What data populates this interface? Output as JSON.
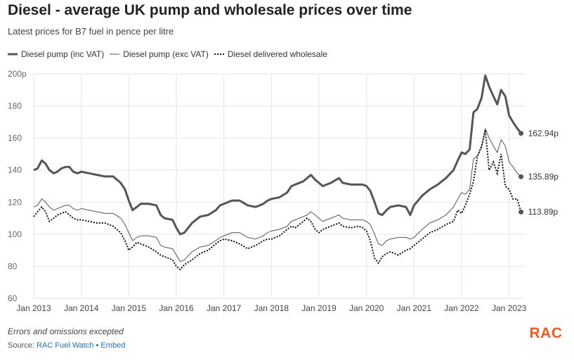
{
  "header": {
    "title": "Diesel - average UK pump and wholesale prices over time",
    "subtitle": "Latest prices for B7 fuel in pence per litre"
  },
  "footer": {
    "note": "Errors and omissions excepted",
    "source_prefix": "Source: ",
    "source_link": "RAC Fuel Watch",
    "separator": " • ",
    "embed_link": "Embed",
    "logo_text": "RAC"
  },
  "colors": {
    "pump_inc_vat": "#555555",
    "pump_exc_vat": "#555555",
    "wholesale": "#111111",
    "grid": "#e6e6e6",
    "logo": "#f15a22",
    "link": "#1a73c8"
  },
  "chart_data": {
    "type": "line",
    "title": "Diesel - average UK pump and wholesale prices over time",
    "subtitle": "Latest prices for B7 fuel in pence per litre",
    "ylim": [
      60,
      200
    ],
    "y_ticks": [
      "60",
      "80",
      "100",
      "120",
      "140",
      "160",
      "180",
      "200p"
    ],
    "xlim": [
      2013.0,
      2023.33
    ],
    "x_ticks": [
      {
        "x": 2013,
        "label": "Jan 2013"
      },
      {
        "x": 2014,
        "label": "Jan 2014"
      },
      {
        "x": 2015,
        "label": "Jan 2015"
      },
      {
        "x": 2016,
        "label": "Jan 2016"
      },
      {
        "x": 2017,
        "label": "Jan 2017"
      },
      {
        "x": 2018,
        "label": "Jan 2018"
      },
      {
        "x": 2019,
        "label": "Jan 2019"
      },
      {
        "x": 2020,
        "label": "Jan 2020"
      },
      {
        "x": 2021,
        "label": "Jan 2021"
      },
      {
        "x": 2022,
        "label": "Jan 2022"
      },
      {
        "x": 2023,
        "label": "Jan 2023"
      }
    ],
    "grid": true,
    "legend_position": "top-left",
    "series": [
      {
        "name": "Diesel pump (inc VAT)",
        "style": "thick",
        "end_label": "162.94p",
        "points": [
          [
            2013.0,
            140
          ],
          [
            2013.08,
            141
          ],
          [
            2013.17,
            146
          ],
          [
            2013.25,
            144
          ],
          [
            2013.33,
            140
          ],
          [
            2013.42,
            138
          ],
          [
            2013.5,
            139
          ],
          [
            2013.58,
            141
          ],
          [
            2013.67,
            142
          ],
          [
            2013.75,
            142
          ],
          [
            2013.83,
            139
          ],
          [
            2013.92,
            138
          ],
          [
            2014.0,
            139
          ],
          [
            2014.17,
            138
          ],
          [
            2014.33,
            137
          ],
          [
            2014.5,
            136
          ],
          [
            2014.67,
            136
          ],
          [
            2014.83,
            132
          ],
          [
            2014.92,
            128
          ],
          [
            2015.0,
            121
          ],
          [
            2015.08,
            115
          ],
          [
            2015.17,
            117
          ],
          [
            2015.25,
            119
          ],
          [
            2015.42,
            119
          ],
          [
            2015.58,
            118
          ],
          [
            2015.67,
            112
          ],
          [
            2015.75,
            110
          ],
          [
            2015.92,
            109
          ],
          [
            2016.0,
            104
          ],
          [
            2016.08,
            100
          ],
          [
            2016.17,
            101
          ],
          [
            2016.33,
            107
          ],
          [
            2016.5,
            111
          ],
          [
            2016.67,
            112
          ],
          [
            2016.83,
            115
          ],
          [
            2016.92,
            118
          ],
          [
            2017.0,
            119
          ],
          [
            2017.17,
            121
          ],
          [
            2017.33,
            121
          ],
          [
            2017.5,
            118
          ],
          [
            2017.67,
            117
          ],
          [
            2017.83,
            119
          ],
          [
            2017.92,
            121
          ],
          [
            2018.0,
            122
          ],
          [
            2018.17,
            123
          ],
          [
            2018.33,
            126
          ],
          [
            2018.42,
            130
          ],
          [
            2018.5,
            131
          ],
          [
            2018.67,
            133
          ],
          [
            2018.75,
            135
          ],
          [
            2018.83,
            137
          ],
          [
            2018.92,
            134
          ],
          [
            2019.0,
            132
          ],
          [
            2019.08,
            130
          ],
          [
            2019.25,
            132
          ],
          [
            2019.42,
            135
          ],
          [
            2019.5,
            132
          ],
          [
            2019.67,
            131
          ],
          [
            2019.83,
            131
          ],
          [
            2019.92,
            131
          ],
          [
            2020.0,
            130
          ],
          [
            2020.08,
            127
          ],
          [
            2020.17,
            120
          ],
          [
            2020.25,
            113
          ],
          [
            2020.33,
            112
          ],
          [
            2020.42,
            115
          ],
          [
            2020.5,
            117
          ],
          [
            2020.67,
            118
          ],
          [
            2020.83,
            117
          ],
          [
            2020.92,
            112
          ],
          [
            2021.0,
            118
          ],
          [
            2021.17,
            124
          ],
          [
            2021.33,
            128
          ],
          [
            2021.5,
            131
          ],
          [
            2021.67,
            135
          ],
          [
            2021.83,
            140
          ],
          [
            2021.92,
            146
          ],
          [
            2022.0,
            151
          ],
          [
            2022.08,
            150
          ],
          [
            2022.17,
            153
          ],
          [
            2022.25,
            176
          ],
          [
            2022.33,
            178
          ],
          [
            2022.42,
            185
          ],
          [
            2022.5,
            199
          ],
          [
            2022.58,
            192
          ],
          [
            2022.67,
            186
          ],
          [
            2022.75,
            181
          ],
          [
            2022.83,
            190
          ],
          [
            2022.92,
            186
          ],
          [
            2023.0,
            174
          ],
          [
            2023.08,
            170
          ],
          [
            2023.17,
            166
          ],
          [
            2023.25,
            162.94
          ]
        ]
      },
      {
        "name": "Diesel pump (exc VAT)",
        "style": "thin",
        "end_label": "135.89p",
        "points": [
          [
            2013.0,
            117
          ],
          [
            2013.08,
            118
          ],
          [
            2013.17,
            122
          ],
          [
            2013.25,
            120
          ],
          [
            2013.33,
            117
          ],
          [
            2013.42,
            115
          ],
          [
            2013.5,
            116
          ],
          [
            2013.58,
            117
          ],
          [
            2013.67,
            118
          ],
          [
            2013.75,
            118
          ],
          [
            2013.83,
            116
          ],
          [
            2013.92,
            115
          ],
          [
            2014.0,
            116
          ],
          [
            2014.17,
            115
          ],
          [
            2014.33,
            114
          ],
          [
            2014.5,
            113
          ],
          [
            2014.67,
            113
          ],
          [
            2014.83,
            110
          ],
          [
            2014.92,
            106
          ],
          [
            2015.0,
            101
          ],
          [
            2015.08,
            96
          ],
          [
            2015.17,
            98
          ],
          [
            2015.25,
            99
          ],
          [
            2015.42,
            99
          ],
          [
            2015.58,
            98
          ],
          [
            2015.67,
            93
          ],
          [
            2015.75,
            92
          ],
          [
            2015.92,
            91
          ],
          [
            2016.0,
            87
          ],
          [
            2016.08,
            83
          ],
          [
            2016.17,
            84
          ],
          [
            2016.33,
            89
          ],
          [
            2016.5,
            92
          ],
          [
            2016.67,
            93
          ],
          [
            2016.83,
            96
          ],
          [
            2016.92,
            98
          ],
          [
            2017.0,
            99
          ],
          [
            2017.17,
            101
          ],
          [
            2017.33,
            101
          ],
          [
            2017.5,
            98
          ],
          [
            2017.67,
            97
          ],
          [
            2017.83,
            99
          ],
          [
            2017.92,
            101
          ],
          [
            2018.0,
            102
          ],
          [
            2018.17,
            103
          ],
          [
            2018.33,
            105
          ],
          [
            2018.42,
            108
          ],
          [
            2018.5,
            109
          ],
          [
            2018.67,
            111
          ],
          [
            2018.75,
            112
          ],
          [
            2018.83,
            114
          ],
          [
            2018.92,
            112
          ],
          [
            2019.0,
            110
          ],
          [
            2019.08,
            108
          ],
          [
            2019.25,
            110
          ],
          [
            2019.42,
            112
          ],
          [
            2019.5,
            110
          ],
          [
            2019.67,
            109
          ],
          [
            2019.83,
            109
          ],
          [
            2019.92,
            109
          ],
          [
            2020.0,
            108
          ],
          [
            2020.08,
            106
          ],
          [
            2020.17,
            100
          ],
          [
            2020.25,
            94
          ],
          [
            2020.33,
            93
          ],
          [
            2020.42,
            96
          ],
          [
            2020.5,
            97
          ],
          [
            2020.67,
            98
          ],
          [
            2020.83,
            98
          ],
          [
            2020.92,
            97
          ],
          [
            2021.0,
            98
          ],
          [
            2021.17,
            103
          ],
          [
            2021.33,
            107
          ],
          [
            2021.5,
            109
          ],
          [
            2021.67,
            112
          ],
          [
            2021.83,
            117
          ],
          [
            2021.92,
            122
          ],
          [
            2022.0,
            126
          ],
          [
            2022.08,
            125
          ],
          [
            2022.17,
            128
          ],
          [
            2022.25,
            147
          ],
          [
            2022.33,
            149
          ],
          [
            2022.42,
            154
          ],
          [
            2022.5,
            166
          ],
          [
            2022.58,
            160
          ],
          [
            2022.67,
            155
          ],
          [
            2022.75,
            151
          ],
          [
            2022.83,
            159
          ],
          [
            2022.92,
            155
          ],
          [
            2023.0,
            145
          ],
          [
            2023.08,
            142
          ],
          [
            2023.17,
            138
          ],
          [
            2023.25,
            135.89
          ]
        ]
      },
      {
        "name": "Diesel delivered wholesale",
        "style": "dotted",
        "end_label": "113.89p",
        "points": [
          [
            2013.0,
            111
          ],
          [
            2013.08,
            114
          ],
          [
            2013.17,
            117
          ],
          [
            2013.25,
            114
          ],
          [
            2013.33,
            108
          ],
          [
            2013.42,
            110
          ],
          [
            2013.5,
            112
          ],
          [
            2013.58,
            113
          ],
          [
            2013.67,
            114
          ],
          [
            2013.75,
            112
          ],
          [
            2013.83,
            110
          ],
          [
            2013.92,
            109
          ],
          [
            2014.0,
            109
          ],
          [
            2014.17,
            108
          ],
          [
            2014.33,
            107
          ],
          [
            2014.5,
            107
          ],
          [
            2014.67,
            105
          ],
          [
            2014.83,
            101
          ],
          [
            2014.92,
            96
          ],
          [
            2015.0,
            90
          ],
          [
            2015.08,
            92
          ],
          [
            2015.17,
            95
          ],
          [
            2015.25,
            94
          ],
          [
            2015.42,
            92
          ],
          [
            2015.58,
            89
          ],
          [
            2015.67,
            87
          ],
          [
            2015.75,
            86
          ],
          [
            2015.92,
            84
          ],
          [
            2016.0,
            80
          ],
          [
            2016.08,
            78
          ],
          [
            2016.17,
            81
          ],
          [
            2016.33,
            84
          ],
          [
            2016.5,
            88
          ],
          [
            2016.67,
            90
          ],
          [
            2016.83,
            94
          ],
          [
            2016.92,
            96
          ],
          [
            2017.0,
            97
          ],
          [
            2017.17,
            96
          ],
          [
            2017.33,
            94
          ],
          [
            2017.5,
            91
          ],
          [
            2017.67,
            93
          ],
          [
            2017.83,
            96
          ],
          [
            2017.92,
            97
          ],
          [
            2018.0,
            97
          ],
          [
            2018.17,
            99
          ],
          [
            2018.33,
            103
          ],
          [
            2018.42,
            105
          ],
          [
            2018.5,
            104
          ],
          [
            2018.67,
            108
          ],
          [
            2018.75,
            110
          ],
          [
            2018.83,
            108
          ],
          [
            2018.92,
            103
          ],
          [
            2019.0,
            101
          ],
          [
            2019.08,
            103
          ],
          [
            2019.25,
            105
          ],
          [
            2019.42,
            107
          ],
          [
            2019.5,
            105
          ],
          [
            2019.67,
            104
          ],
          [
            2019.83,
            105
          ],
          [
            2019.92,
            104
          ],
          [
            2020.0,
            102
          ],
          [
            2020.08,
            96
          ],
          [
            2020.17,
            85
          ],
          [
            2020.25,
            82
          ],
          [
            2020.33,
            86
          ],
          [
            2020.42,
            88
          ],
          [
            2020.5,
            89
          ],
          [
            2020.67,
            87
          ],
          [
            2020.83,
            90
          ],
          [
            2020.92,
            91
          ],
          [
            2021.0,
            93
          ],
          [
            2021.17,
            97
          ],
          [
            2021.33,
            101
          ],
          [
            2021.5,
            103
          ],
          [
            2021.67,
            106
          ],
          [
            2021.83,
            108
          ],
          [
            2021.92,
            115
          ],
          [
            2022.0,
            113
          ],
          [
            2022.08,
            118
          ],
          [
            2022.17,
            125
          ],
          [
            2022.25,
            133
          ],
          [
            2022.33,
            148
          ],
          [
            2022.42,
            155
          ],
          [
            2022.5,
            165
          ],
          [
            2022.58,
            140
          ],
          [
            2022.67,
            145
          ],
          [
            2022.75,
            138
          ],
          [
            2022.83,
            150
          ],
          [
            2022.92,
            130
          ],
          [
            2023.0,
            128
          ],
          [
            2023.08,
            122
          ],
          [
            2023.17,
            122
          ],
          [
            2023.25,
            113.89
          ]
        ]
      }
    ]
  }
}
